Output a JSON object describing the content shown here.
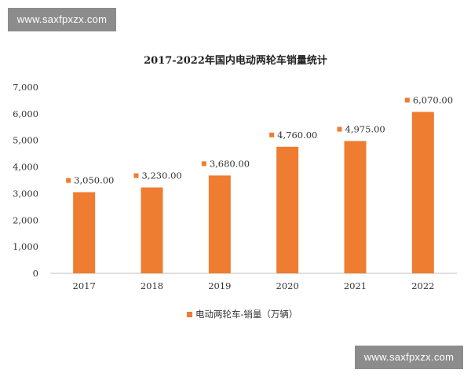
{
  "watermark_text": "www.saxfpxzx.com",
  "chart_data": {
    "type": "bar",
    "title": "2017-2022年国内电动两轮车销量统计",
    "categories": [
      "2017",
      "2018",
      "2019",
      "2020",
      "2021",
      "2022"
    ],
    "series": [
      {
        "name": "电动两轮车-销量（万辆）",
        "values": [
          3050,
          3230,
          3680,
          4760,
          4975,
          6070
        ],
        "labels": [
          "3,050.00",
          "3,230.00",
          "3,680.00",
          "4,760.00",
          "4,975.00",
          "6,070.00"
        ],
        "color": "#ee7d31"
      }
    ],
    "ylim": [
      0,
      7000
    ],
    "yticks": [
      0,
      1000,
      2000,
      3000,
      4000,
      5000,
      6000,
      7000
    ],
    "ytick_labels": [
      "0",
      "1,000",
      "2,000",
      "3,000",
      "4,000",
      "5,000",
      "6,000",
      "7,000"
    ],
    "xlabel": "",
    "ylabel": "",
    "grid": false,
    "legend": "bottom"
  }
}
